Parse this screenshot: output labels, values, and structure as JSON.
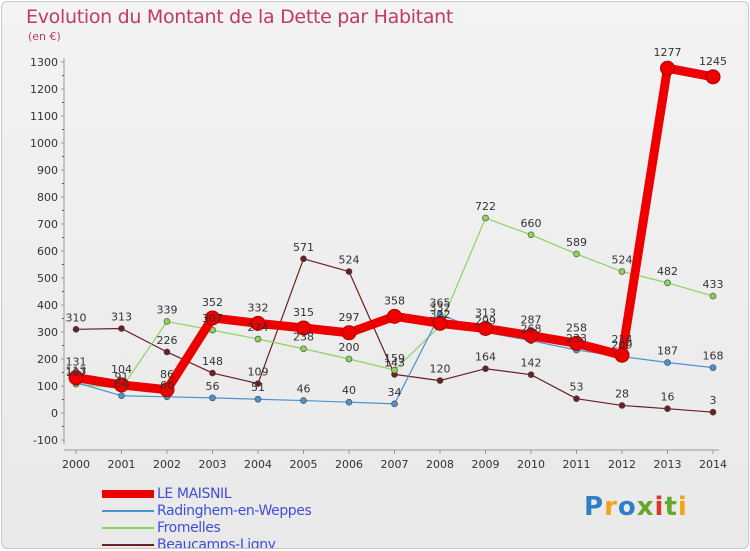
{
  "title": "Evolution du Montant de la Dette par Habitant",
  "subtitle": "(en €)",
  "logo": "Proxiti",
  "chart_data": {
    "type": "line",
    "categories": [
      "2000",
      "2001",
      "2002",
      "2003",
      "2004",
      "2005",
      "2006",
      "2007",
      "2008",
      "2009",
      "2010",
      "2011",
      "2012",
      "2013",
      "2014"
    ],
    "ylim": [
      -100,
      1300
    ],
    "yticks": [
      -100,
      0,
      100,
      200,
      300,
      400,
      500,
      600,
      700,
      800,
      900,
      1000,
      1100,
      1200,
      1300
    ],
    "grid": false,
    "legend_position": "bottom-left",
    "series": [
      {
        "name": "Beaucamps-Ligny",
        "color": "#6b1f24",
        "width": 1.2,
        "marker": 3,
        "values": [
          310,
          313,
          226,
          148,
          109,
          571,
          524,
          143,
          120,
          164,
          142,
          53,
          28,
          16,
          3
        ],
        "labels": [
          "310",
          "313",
          "226",
          "148",
          "109",
          "571",
          "524",
          "143",
          "120",
          "164",
          "142",
          "53",
          "28",
          "16",
          "3"
        ]
      },
      {
        "name": "Fromelles",
        "color": "#8bd45c",
        "width": 1.2,
        "marker": 3,
        "values": [
          107,
          91,
          339,
          307,
          274,
          238,
          200,
          159,
          322,
          722,
          660,
          589,
          524,
          482,
          433
        ],
        "labels": [
          "107",
          "91",
          "339",
          "307",
          "274",
          "238",
          "200",
          "159",
          "322",
          "722",
          "660",
          "589",
          "524",
          "482",
          "433"
        ]
      },
      {
        "name": "Radinghem-en-Weppes",
        "color": "#4a93cf",
        "width": 1.2,
        "marker": 3,
        "values": [
          113,
          64,
          60,
          56,
          51,
          46,
          40,
          34,
          365,
          299,
          268,
          233,
          209,
          187,
          168
        ],
        "labels": [
          "113",
          "64",
          "60",
          "56",
          "51",
          "46",
          "40",
          "34",
          "365",
          "299",
          "268",
          "233",
          "209",
          "187",
          "168"
        ]
      },
      {
        "name": "LE MAISNIL",
        "color": "#ee0000",
        "width": 9,
        "marker": 7,
        "values": [
          131,
          104,
          86,
          352,
          332,
          315,
          297,
          358,
          332,
          313,
          287,
          258,
          214,
          1277,
          1245
        ],
        "labels": [
          "131",
          "104",
          "86",
          "352",
          "332",
          "315",
          "297",
          "358",
          "332",
          "313",
          "287",
          "258",
          "214",
          "1277",
          "1245"
        ]
      }
    ],
    "legend": [
      {
        "name": "LE MAISNIL",
        "color": "#ee0000",
        "thickness": 8
      },
      {
        "name": "Radinghem-en-Weppes",
        "color": "#4a93cf",
        "thickness": 2
      },
      {
        "name": "Fromelles",
        "color": "#8bd45c",
        "thickness": 2
      },
      {
        "name": "Beaucamps-Ligny",
        "color": "#6b1f24",
        "thickness": 2
      }
    ]
  }
}
